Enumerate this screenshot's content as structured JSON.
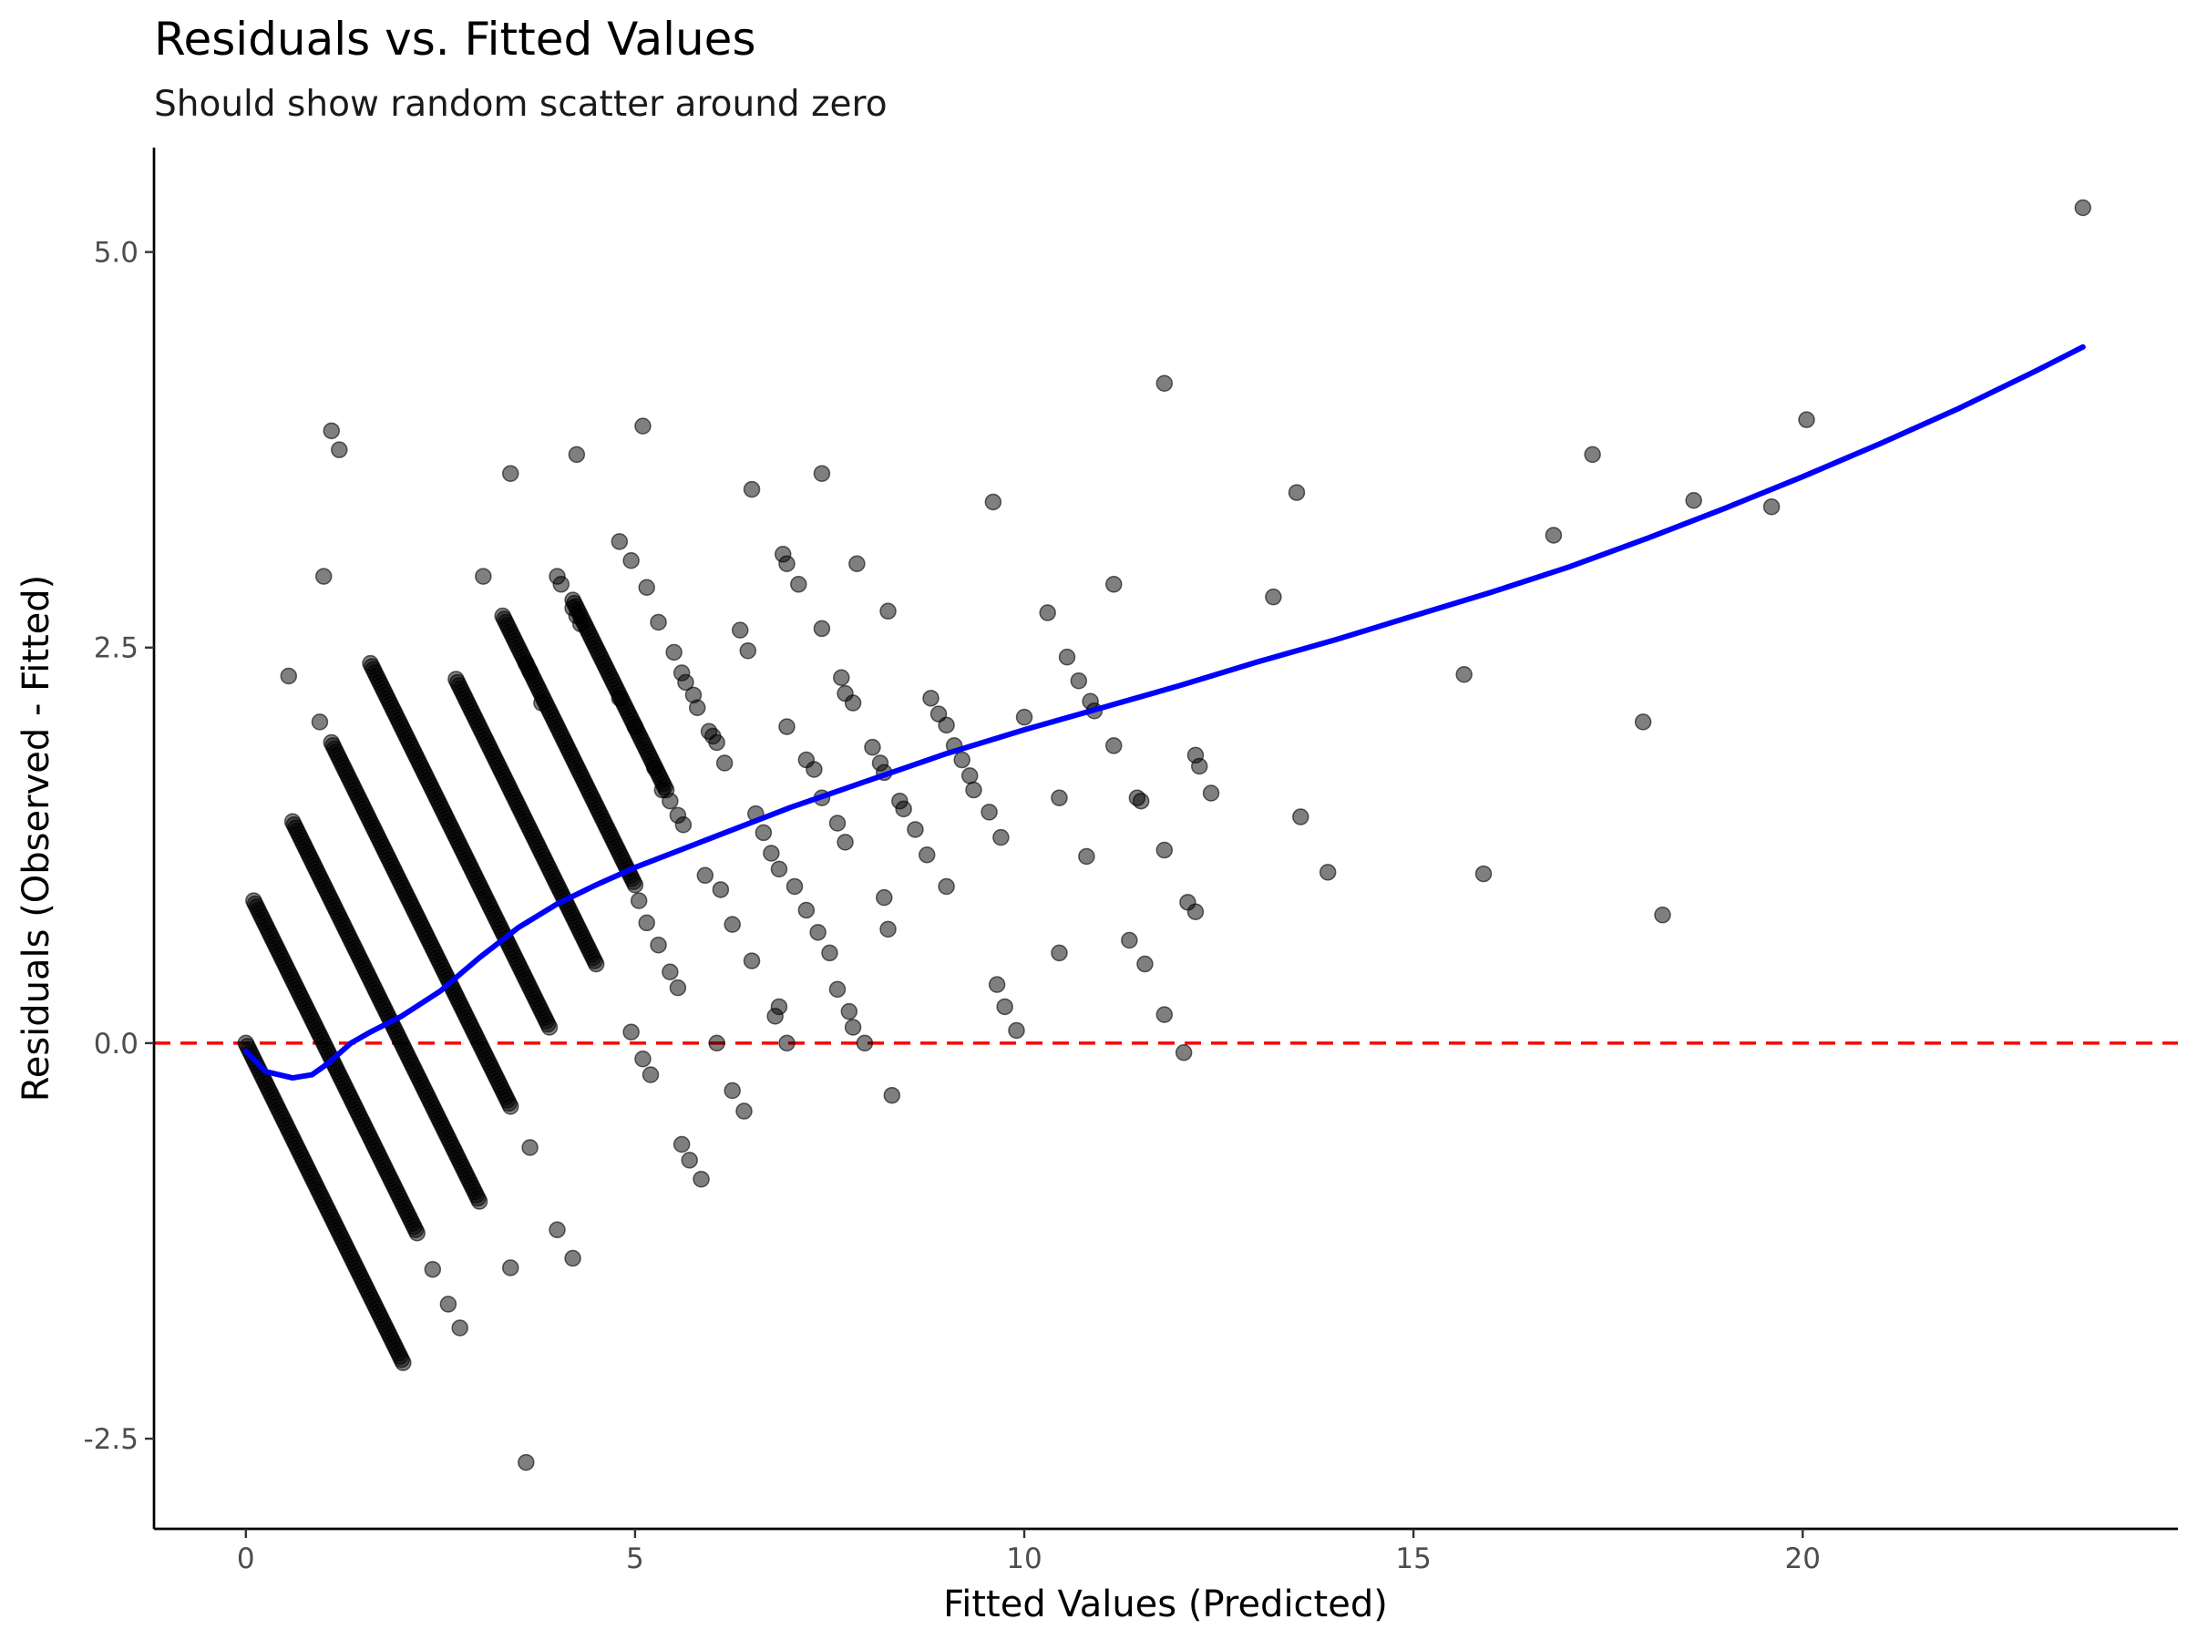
{
  "chart_data": {
    "type": "scatter",
    "title": "Residuals vs. Fitted Values",
    "subtitle": "Should show random scatter around zero",
    "xlabel": "Fitted Values (Predicted)",
    "ylabel": "Residuals (Observed - Fitted)",
    "xlim": [
      -1.18,
      24.82
    ],
    "ylim": [
      -3.07,
      5.66
    ],
    "x_ticks": [
      0,
      5,
      10,
      15,
      20
    ],
    "x_tick_labels": [
      "0",
      "5",
      "10",
      "15",
      "20"
    ],
    "y_ticks": [
      -2.5,
      0,
      2.5,
      5
    ],
    "y_tick_labels": [
      "-2.5",
      "0.0",
      "2.5",
      "5.0"
    ],
    "grid": false,
    "legend": "none",
    "colors": {
      "points": "#000000",
      "smooth_line": "#0000ff",
      "zero_line": "#ff0000"
    },
    "reference_line": {
      "y": 0,
      "style": "dashed",
      "color": "#ff0000"
    },
    "series": [
      {
        "kind": "points",
        "bands": [
          {
            "k": 0,
            "x_from": 0.0,
            "x_to": 2.02
          },
          {
            "k": 1,
            "x_from": 0.1,
            "x_to": 2.2
          },
          {
            "k": 2,
            "x_from": 0.6,
            "x_to": 3.0
          },
          {
            "k": 3,
            "x_from": 1.1,
            "x_to": 3.4
          },
          {
            "k": 4,
            "x_from": 1.6,
            "x_to": 3.9
          },
          {
            "k": 5,
            "x_from": 2.7,
            "x_to": 4.5
          },
          {
            "k": 6,
            "x_from": 3.3,
            "x_to": 5.0
          },
          {
            "k": 7,
            "x_from": 4.2,
            "x_to": 5.4
          }
        ],
        "points": [
          [
            0.55,
            2.32
          ],
          [
            1.0,
            2.95
          ],
          [
            1.1,
            3.87
          ],
          [
            1.2,
            3.75
          ],
          [
            0.95,
            2.03
          ],
          [
            3.05,
            2.95
          ],
          [
            3.4,
            3.6
          ],
          [
            3.6,
            2.4
          ],
          [
            3.65,
            2.35
          ],
          [
            3.8,
            2.15
          ],
          [
            4.0,
            2.95
          ],
          [
            4.05,
            2.9
          ],
          [
            4.2,
            2.75
          ],
          [
            4.25,
            2.7
          ],
          [
            4.3,
            2.65
          ],
          [
            4.25,
            3.72
          ],
          [
            4.8,
            3.17
          ],
          [
            4.95,
            3.05
          ],
          [
            5.1,
            3.9
          ],
          [
            5.15,
            2.88
          ],
          [
            5.3,
            2.66
          ],
          [
            5.5,
            2.47
          ],
          [
            5.6,
            2.34
          ],
          [
            5.65,
            2.28
          ],
          [
            5.75,
            2.2
          ],
          [
            5.8,
            2.12
          ],
          [
            5.95,
            1.97
          ],
          [
            6.0,
            1.94
          ],
          [
            6.05,
            1.9
          ],
          [
            6.15,
            1.77
          ],
          [
            4.8,
            2.18
          ],
          [
            5.0,
            2.0
          ],
          [
            5.25,
            1.74
          ],
          [
            5.35,
            1.6
          ],
          [
            5.45,
            1.53
          ],
          [
            5.55,
            1.44
          ],
          [
            5.62,
            1.38
          ],
          [
            5.9,
            1.06
          ],
          [
            6.1,
            0.97
          ],
          [
            6.35,
            2.61
          ],
          [
            6.45,
            2.48
          ],
          [
            6.5,
            3.5
          ],
          [
            6.55,
            1.45
          ],
          [
            6.65,
            1.33
          ],
          [
            6.75,
            1.2
          ],
          [
            6.85,
            1.1
          ],
          [
            6.95,
            2.0
          ],
          [
            6.9,
            3.09
          ],
          [
            6.95,
            3.03
          ],
          [
            7.1,
            2.9
          ],
          [
            7.2,
            1.79
          ],
          [
            7.3,
            1.73
          ],
          [
            7.4,
            3.6
          ],
          [
            7.4,
            1.55
          ],
          [
            7.4,
            2.62
          ],
          [
            7.6,
            1.39
          ],
          [
            7.65,
            2.31
          ],
          [
            7.7,
            2.21
          ],
          [
            7.8,
            2.15
          ],
          [
            7.7,
            1.27
          ],
          [
            7.85,
            3.03
          ],
          [
            8.05,
            1.87
          ],
          [
            8.15,
            1.77
          ],
          [
            8.2,
            1.71
          ],
          [
            8.25,
            2.73
          ],
          [
            8.4,
            1.53
          ],
          [
            8.45,
            1.48
          ],
          [
            8.6,
            1.35
          ],
          [
            8.75,
            1.19
          ],
          [
            8.8,
            2.18
          ],
          [
            8.9,
            2.08
          ],
          [
            9.0,
            2.01
          ],
          [
            9.0,
            0.99
          ],
          [
            9.1,
            1.88
          ],
          [
            9.2,
            1.79
          ],
          [
            9.3,
            1.69
          ],
          [
            9.35,
            1.6
          ],
          [
            9.55,
            1.46
          ],
          [
            9.6,
            3.42
          ],
          [
            9.7,
            1.3
          ],
          [
            10.3,
            2.72
          ],
          [
            10.55,
            2.44
          ],
          [
            10.7,
            2.29
          ],
          [
            10.85,
            2.16
          ],
          [
            10.9,
            2.1
          ],
          [
            11.15,
            2.9
          ],
          [
            11.15,
            1.88
          ],
          [
            10.0,
            2.06
          ],
          [
            10.45,
            1.55
          ],
          [
            10.8,
            1.18
          ],
          [
            11.8,
            4.17
          ],
          [
            12.2,
            1.82
          ],
          [
            12.25,
            1.75
          ],
          [
            12.4,
            1.58
          ],
          [
            11.45,
            1.55
          ],
          [
            11.5,
            1.53
          ],
          [
            11.8,
            1.22
          ],
          [
            13.2,
            2.82
          ],
          [
            13.5,
            3.48
          ],
          [
            13.55,
            1.43
          ],
          [
            13.9,
            1.08
          ],
          [
            12.1,
            0.89
          ],
          [
            12.2,
            0.83
          ],
          [
            11.35,
            0.65
          ],
          [
            11.55,
            0.5
          ],
          [
            11.8,
            0.18
          ],
          [
            12.05,
            -0.06
          ],
          [
            9.65,
            0.37
          ],
          [
            9.75,
            0.23
          ],
          [
            9.9,
            0.08
          ],
          [
            10.45,
            0.57
          ],
          [
            15.65,
            2.33
          ],
          [
            15.9,
            1.07
          ],
          [
            16.8,
            3.21
          ],
          [
            17.3,
            3.72
          ],
          [
            17.95,
            2.03
          ],
          [
            18.2,
            0.81
          ],
          [
            18.6,
            3.43
          ],
          [
            19.6,
            3.39
          ],
          [
            20.05,
            3.94
          ],
          [
            23.6,
            5.28
          ],
          [
            8.2,
            0.92
          ],
          [
            8.25,
            0.72
          ],
          [
            8.3,
            -0.33
          ],
          [
            7.95,
            0.0
          ],
          [
            7.8,
            0.1
          ],
          [
            7.75,
            0.2
          ],
          [
            7.6,
            0.34
          ],
          [
            7.5,
            0.57
          ],
          [
            7.35,
            0.7
          ],
          [
            7.2,
            0.84
          ],
          [
            7.05,
            0.99
          ],
          [
            6.95,
            0.0
          ],
          [
            6.8,
            0.17
          ],
          [
            6.85,
            0.23
          ],
          [
            6.5,
            0.52
          ],
          [
            6.25,
            0.75
          ],
          [
            6.05,
            0.0
          ],
          [
            6.25,
            -0.3
          ],
          [
            6.4,
            -0.43
          ],
          [
            5.6,
            -0.64
          ],
          [
            5.7,
            -0.74
          ],
          [
            5.85,
            -0.86
          ],
          [
            5.55,
            0.35
          ],
          [
            5.45,
            0.45
          ],
          [
            5.3,
            0.62
          ],
          [
            5.15,
            0.76
          ],
          [
            5.05,
            0.9
          ],
          [
            4.95,
            0.07
          ],
          [
            5.1,
            -0.1
          ],
          [
            5.2,
            -0.2
          ],
          [
            3.65,
            -0.66
          ],
          [
            3.4,
            -1.42
          ],
          [
            3.6,
            -2.65
          ],
          [
            4.0,
            -1.18
          ],
          [
            4.2,
            -1.36
          ],
          [
            2.75,
            -1.8
          ],
          [
            2.6,
            -1.65
          ],
          [
            2.4,
            -1.43
          ]
        ]
      },
      {
        "name": "",
        "kind": "smooth_line",
        "x": [
          0,
          0.25,
          0.6,
          0.85,
          1.05,
          1.35,
          1.6,
          2.0,
          2.5,
          3.0,
          3.5,
          4.0,
          4.5,
          5.0,
          6.0,
          7.0,
          8.0,
          9.0,
          10.0,
          11.0,
          12.0,
          13.0,
          14.0,
          15.0,
          16.0,
          17.0,
          18.0,
          19.0,
          20.0,
          21.0,
          22.0,
          23.0,
          23.6
        ],
        "y": [
          -0.05,
          -0.18,
          -0.22,
          -0.2,
          -0.13,
          0.0,
          0.07,
          0.17,
          0.33,
          0.54,
          0.73,
          0.88,
          1.0,
          1.11,
          1.3,
          1.49,
          1.66,
          1.83,
          1.98,
          2.12,
          2.26,
          2.41,
          2.55,
          2.7,
          2.85,
          3.01,
          3.19,
          3.38,
          3.58,
          3.79,
          4.01,
          4.25,
          4.4
        ]
      }
    ]
  }
}
